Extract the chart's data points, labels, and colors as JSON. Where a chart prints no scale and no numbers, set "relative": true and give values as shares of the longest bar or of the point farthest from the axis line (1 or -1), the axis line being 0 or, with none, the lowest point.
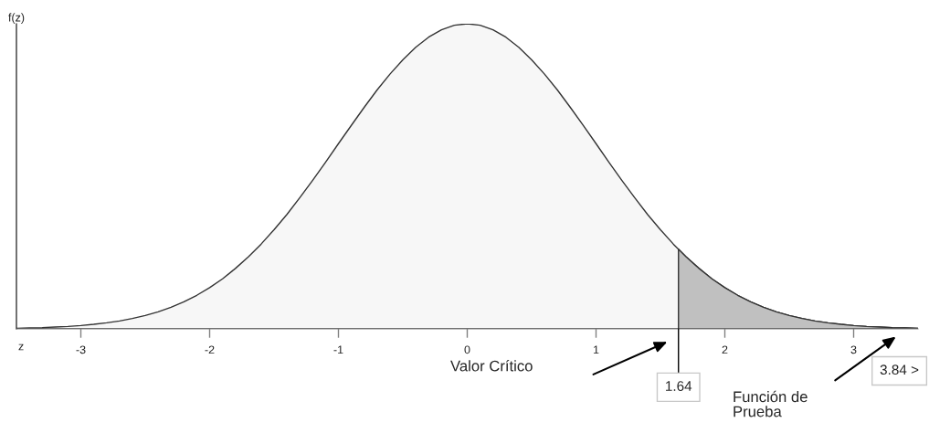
{
  "chart_data": {
    "type": "area",
    "xlabel": "z",
    "ylabel": "f(z)",
    "relative": true,
    "xlim": [
      -3.5,
      3.5
    ],
    "xticks": [
      -3,
      -2,
      -1,
      0,
      1,
      2,
      3
    ],
    "series": [
      {
        "color": "#f7f7f7",
        "x": [
          -3.5,
          -3.4,
          -3.3,
          -3.2,
          -3.1,
          -3.0,
          -2.9,
          -2.8,
          -2.7,
          -2.6,
          -2.5,
          -2.4,
          -2.3,
          -2.2,
          -2.1,
          -2.0,
          -1.9,
          -1.8,
          -1.7,
          -1.6,
          -1.5,
          -1.4,
          -1.3,
          -1.2,
          -1.1,
          -1.0,
          -0.9,
          -0.8,
          -0.7,
          -0.6,
          -0.5,
          -0.4,
          -0.3,
          -0.2,
          -0.1,
          0.0,
          0.1,
          0.2,
          0.3,
          0.4,
          0.5,
          0.6,
          0.7,
          0.8,
          0.9,
          1.0,
          1.1,
          1.2,
          1.3,
          1.4,
          1.5,
          1.6,
          1.7,
          1.8,
          1.9,
          2.0,
          2.1,
          2.2,
          2.3,
          2.4,
          2.5,
          2.6,
          2.7,
          2.8,
          2.9,
          3.0,
          3.1,
          3.2,
          3.3,
          3.4,
          3.5
        ],
        "values": [
          0.002,
          0.003,
          0.004,
          0.006,
          0.008,
          0.011,
          0.015,
          0.02,
          0.026,
          0.034,
          0.044,
          0.056,
          0.071,
          0.089,
          0.11,
          0.135,
          0.164,
          0.198,
          0.236,
          0.278,
          0.325,
          0.375,
          0.43,
          0.487,
          0.546,
          0.607,
          0.667,
          0.726,
          0.783,
          0.835,
          0.882,
          0.923,
          0.956,
          0.98,
          0.995,
          1.0,
          0.995,
          0.98,
          0.956,
          0.923,
          0.882,
          0.835,
          0.783,
          0.726,
          0.667,
          0.607,
          0.546,
          0.487,
          0.43,
          0.375,
          0.325,
          0.278,
          0.236,
          0.198,
          0.164,
          0.135,
          0.11,
          0.089,
          0.071,
          0.056,
          0.044,
          0.034,
          0.026,
          0.02,
          0.015,
          0.011,
          0.008,
          0.006,
          0.004,
          0.003,
          0.002
        ]
      },
      {
        "color": "#c0c0c0",
        "x": [
          1.64,
          1.7,
          1.8,
          1.9,
          2.0,
          2.1,
          2.2,
          2.3,
          2.4,
          2.5,
          2.6,
          2.7,
          2.8,
          2.9,
          3.0,
          3.1,
          3.2,
          3.3,
          3.4,
          3.5
        ],
        "values": [
          0.261,
          0.236,
          0.198,
          0.164,
          0.135,
          0.11,
          0.089,
          0.071,
          0.056,
          0.044,
          0.034,
          0.026,
          0.02,
          0.015,
          0.011,
          0.008,
          0.006,
          0.004,
          0.003,
          0.002
        ]
      }
    ],
    "annotations": [
      {
        "text": "1.64",
        "x": 1.64,
        "y": 0
      },
      "Valor Crítico",
      "3.84 >",
      "Función de\nPrueba"
    ]
  }
}
